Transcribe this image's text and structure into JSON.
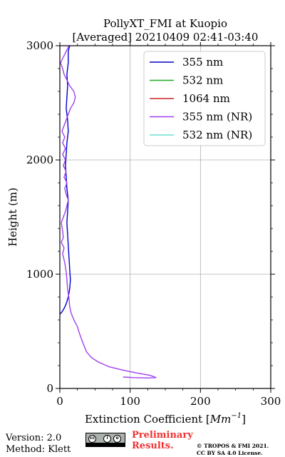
{
  "chart_data": {
    "type": "line",
    "title": "PollyXT_FMI at Kuopio",
    "subtitle": "[Averaged] 20210409 02:41-03:40",
    "xlabel": "Extinction Coefficient [Mm⁻¹]",
    "xlabel_main": "Extinction Coefficient [",
    "xlabel_unit": "Mm",
    "xlabel_exp": "−1",
    "xlabel_close": "]",
    "ylabel": "Height (m)",
    "xlim": [
      0,
      300
    ],
    "ylim": [
      0,
      3000
    ],
    "x_ticks": [
      0,
      100,
      200,
      300
    ],
    "y_ticks": [
      0,
      1000,
      2000,
      3000
    ],
    "grid": true,
    "legend_position": "top-right",
    "series": [
      {
        "name": "355 nm",
        "color": "#0000cc",
        "points": [
          [
            0,
            650
          ],
          [
            3,
            670
          ],
          [
            6,
            700
          ],
          [
            9,
            740
          ],
          [
            12,
            800
          ],
          [
            14,
            870
          ],
          [
            15,
            950
          ],
          [
            14,
            1050
          ],
          [
            13,
            1150
          ],
          [
            12,
            1250
          ],
          [
            11,
            1350
          ],
          [
            10,
            1450
          ],
          [
            11,
            1550
          ],
          [
            12,
            1650
          ],
          [
            10,
            1750
          ],
          [
            9,
            1850
          ],
          [
            8,
            1950
          ],
          [
            9,
            2050
          ],
          [
            10,
            2150
          ],
          [
            12,
            2250
          ],
          [
            11,
            2350
          ],
          [
            9,
            2450
          ],
          [
            10,
            2550
          ],
          [
            11,
            2650
          ],
          [
            10,
            2750
          ],
          [
            12,
            2850
          ],
          [
            12,
            2950
          ],
          [
            14,
            3000
          ]
        ]
      },
      {
        "name": "532 nm",
        "color": "#22aa22",
        "points": []
      },
      {
        "name": "1064 nm",
        "color": "#cc2222",
        "points": []
      },
      {
        "name": "355 nm (NR)",
        "color": "#a040ee",
        "points": [
          [
            90,
            100
          ],
          [
            105,
            95
          ],
          [
            125,
            92
          ],
          [
            137,
            95
          ],
          [
            128,
            115
          ],
          [
            110,
            135
          ],
          [
            90,
            160
          ],
          [
            70,
            190
          ],
          [
            55,
            230
          ],
          [
            45,
            270
          ],
          [
            38,
            320
          ],
          [
            34,
            380
          ],
          [
            31,
            430
          ],
          [
            28,
            480
          ],
          [
            25,
            540
          ],
          [
            20,
            600
          ],
          [
            16,
            660
          ],
          [
            14,
            720
          ],
          [
            13,
            790
          ],
          [
            11,
            870
          ],
          [
            10,
            950
          ],
          [
            9,
            1020
          ],
          [
            7,
            1100
          ],
          [
            4,
            1180
          ],
          [
            6,
            1230
          ],
          [
            2,
            1280
          ],
          [
            5,
            1320
          ],
          [
            4,
            1380
          ],
          [
            2,
            1450
          ],
          [
            5,
            1500
          ],
          [
            8,
            1550
          ],
          [
            10,
            1600
          ],
          [
            12,
            1650
          ],
          [
            9,
            1700
          ],
          [
            7,
            1750
          ],
          [
            10,
            1800
          ],
          [
            6,
            1850
          ],
          [
            9,
            1900
          ],
          [
            5,
            1950
          ],
          [
            8,
            2000
          ],
          [
            4,
            2050
          ],
          [
            8,
            2100
          ],
          [
            4,
            2150
          ],
          [
            7,
            2200
          ],
          [
            3,
            2250
          ],
          [
            6,
            2300
          ],
          [
            9,
            2350
          ],
          [
            12,
            2400
          ],
          [
            15,
            2450
          ],
          [
            20,
            2500
          ],
          [
            22,
            2550
          ],
          [
            20,
            2600
          ],
          [
            14,
            2650
          ],
          [
            10,
            2700
          ],
          [
            6,
            2750
          ],
          [
            4,
            2800
          ],
          [
            1,
            2850
          ],
          [
            5,
            2900
          ],
          [
            9,
            2950
          ],
          [
            13,
            3000
          ]
        ]
      },
      {
        "name": "532 nm (NR)",
        "color": "#66e0d0",
        "points": []
      }
    ]
  },
  "footer": {
    "version": "Version: 2.0",
    "method": "Method: Klett",
    "prelim_line1": "Preliminary",
    "prelim_line2": "Results.",
    "copyright_line1": "© TROPOS & FMI 2021.",
    "copyright_line2": "CC BY SA 4.0 License.",
    "license_badge_text": "BY SA"
  }
}
